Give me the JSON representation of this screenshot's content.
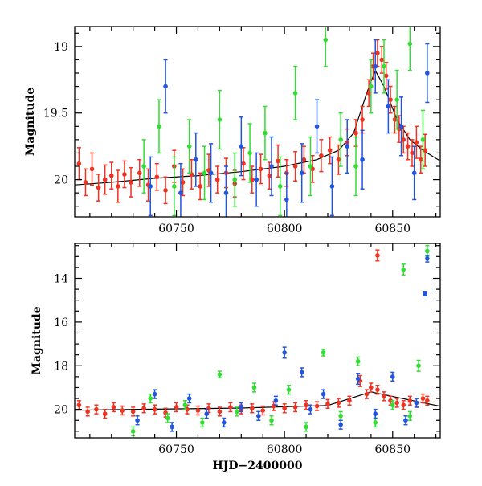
{
  "colors": {
    "red": "#ee3322",
    "green": "#33dd33",
    "blue": "#2255dd",
    "model": "#000000"
  },
  "chart_data": [
    {
      "type": "scatter",
      "panel": "top",
      "xlabel": "",
      "ylabel": "Magnitude",
      "xlim": [
        60703,
        60872
      ],
      "ylim": [
        20.28,
        18.85
      ],
      "y_inverted": true,
      "x_ticks": [
        60750,
        60800,
        60850
      ],
      "x_tick_labels": [
        "60750",
        "60800",
        "60850"
      ],
      "y_ticks": [
        19,
        19.5,
        20
      ],
      "y_tick_labels": [
        "19",
        "19.5",
        "20"
      ],
      "error_bars": true,
      "series": [
        {
          "color": "red",
          "x": [
            60705,
            60708,
            60711,
            60714,
            60717,
            60720,
            60723,
            60726,
            60729,
            60733,
            60737,
            60741,
            60745,
            60749,
            60753,
            60757,
            60761,
            60765,
            60769,
            60773,
            60777,
            60781,
            60785,
            60789,
            60793,
            60797,
            60801,
            60805,
            60809,
            60813,
            60817,
            60821,
            60825,
            60829,
            60833,
            60836,
            60839,
            60841,
            60843,
            60845,
            60847,
            60849,
            60851,
            60853,
            60855,
            60857,
            60859,
            60861,
            60863,
            60865
          ],
          "y": [
            19.88,
            20.02,
            19.92,
            20.06,
            20.0,
            19.97,
            20.05,
            19.96,
            20.02,
            19.95,
            20.04,
            19.98,
            20.08,
            19.9,
            20.02,
            19.96,
            20.05,
            19.93,
            20.0,
            19.95,
            20.03,
            19.88,
            20.0,
            19.92,
            19.97,
            19.86,
            19.95,
            19.9,
            19.85,
            19.92,
            19.82,
            19.78,
            19.85,
            19.72,
            19.65,
            19.55,
            19.35,
            19.15,
            19.05,
            19.1,
            19.22,
            19.4,
            19.55,
            19.62,
            19.7,
            19.75,
            19.8,
            19.72,
            19.85,
            19.78
          ],
          "err": [
            0.12,
            0.1,
            0.12,
            0.1,
            0.11,
            0.1,
            0.12,
            0.1,
            0.11,
            0.1,
            0.12,
            0.1,
            0.1,
            0.12,
            0.1,
            0.11,
            0.1,
            0.12,
            0.1,
            0.11,
            0.1,
            0.12,
            0.1,
            0.11,
            0.1,
            0.12,
            0.1,
            0.11,
            0.1,
            0.1,
            0.12,
            0.1,
            0.11,
            0.1,
            0.1,
            0.1,
            0.1,
            0.1,
            0.1,
            0.1,
            0.1,
            0.1,
            0.1,
            0.1,
            0.1,
            0.1,
            0.1,
            0.12,
            0.1,
            0.12
          ]
        },
        {
          "color": "green",
          "x": [
            60735,
            60742,
            60749,
            60756,
            60763,
            60770,
            60777,
            60784,
            60791,
            60798,
            60805,
            60812,
            60819,
            60826,
            60833,
            60840,
            60846,
            60852,
            60858,
            60864
          ],
          "y": [
            19.9,
            19.6,
            20.05,
            19.75,
            19.95,
            19.55,
            20.0,
            19.8,
            19.65,
            20.05,
            19.35,
            19.9,
            18.95,
            19.7,
            19.9,
            19.3,
            19.15,
            19.4,
            18.98,
            19.7
          ],
          "err": [
            0.2,
            0.2,
            0.22,
            0.2,
            0.2,
            0.22,
            0.2,
            0.22,
            0.2,
            0.22,
            0.2,
            0.22,
            0.2,
            0.2,
            0.22,
            0.2,
            0.2,
            0.22,
            0.2,
            0.22
          ]
        },
        {
          "color": "blue",
          "x": [
            60738,
            60745,
            60752,
            60759,
            60766,
            60773,
            60780,
            60787,
            60794,
            60801,
            60808,
            60815,
            60822,
            60829,
            60836,
            60842,
            60848,
            60854,
            60860,
            60866
          ],
          "y": [
            20.05,
            19.3,
            20.1,
            19.85,
            19.95,
            20.1,
            19.75,
            20.0,
            19.9,
            20.15,
            19.95,
            19.6,
            20.05,
            19.75,
            19.85,
            19.15,
            19.45,
            19.6,
            19.95,
            19.2
          ],
          "err": [
            0.22,
            0.2,
            0.22,
            0.2,
            0.22,
            0.2,
            0.22,
            0.2,
            0.22,
            0.2,
            0.22,
            0.2,
            0.22,
            0.2,
            0.22,
            0.2,
            0.2,
            0.22,
            0.2,
            0.22
          ]
        }
      ],
      "model_curve": {
        "x": [
          60703,
          60720,
          60740,
          60760,
          60780,
          60800,
          60815,
          60825,
          60832,
          60838,
          60842,
          60846,
          60852,
          60858,
          60864,
          60872
        ],
        "y": [
          20.04,
          20.02,
          19.99,
          19.97,
          19.94,
          19.9,
          19.85,
          19.78,
          19.65,
          19.35,
          19.18,
          19.3,
          19.55,
          19.7,
          19.78,
          19.86
        ]
      }
    },
    {
      "type": "scatter",
      "panel": "bottom",
      "xlabel": "HJD−2400000",
      "ylabel": "Magnitude",
      "xlim": [
        60703,
        60872
      ],
      "ylim": [
        21.3,
        12.4
      ],
      "y_inverted": true,
      "x_ticks": [
        60750,
        60800,
        60850
      ],
      "x_tick_labels": [
        "60750",
        "60800",
        "60850"
      ],
      "y_ticks": [
        14,
        16,
        18,
        20
      ],
      "y_tick_labels": [
        "14",
        "16",
        "18",
        "20"
      ],
      "error_bars": true,
      "series": [
        {
          "color": "red",
          "x": [
            60705,
            60709,
            60713,
            60717,
            60721,
            60725,
            60730,
            60735,
            60740,
            60745,
            60750,
            60755,
            60760,
            60765,
            60770,
            60775,
            60780,
            60785,
            60790,
            60795,
            60800,
            60805,
            60810,
            60815,
            60820,
            60825,
            60830,
            60835,
            60838,
            60840,
            60843,
            60846,
            60849,
            60852,
            60855,
            60858,
            60861,
            60864,
            60866
          ],
          "y": [
            19.8,
            20.1,
            20.0,
            20.2,
            19.9,
            20.05,
            20.1,
            19.95,
            20.0,
            20.15,
            19.9,
            20.0,
            20.05,
            19.95,
            20.1,
            19.9,
            20.0,
            19.95,
            20.05,
            19.85,
            19.95,
            19.9,
            19.8,
            19.85,
            19.75,
            19.7,
            19.6,
            18.7,
            19.3,
            19.0,
            19.1,
            19.4,
            19.6,
            19.7,
            19.8,
            19.6,
            19.7,
            19.5,
            19.6
          ],
          "err": [
            0.2,
            0.2,
            0.2,
            0.2,
            0.2,
            0.2,
            0.2,
            0.2,
            0.2,
            0.2,
            0.2,
            0.2,
            0.2,
            0.2,
            0.2,
            0.2,
            0.2,
            0.2,
            0.2,
            0.2,
            0.2,
            0.2,
            0.2,
            0.2,
            0.2,
            0.2,
            0.2,
            0.25,
            0.2,
            0.2,
            0.2,
            0.2,
            0.2,
            0.2,
            0.2,
            0.2,
            0.2,
            0.2,
            0.2
          ]
        },
        {
          "color": "red",
          "x": [
            60843
          ],
          "y": [
            12.95
          ],
          "err": [
            0.25
          ]
        },
        {
          "color": "green",
          "x": [
            60730,
            60738,
            60746,
            60754,
            60762,
            60770,
            60778,
            60786,
            60794,
            60802,
            60810,
            60818,
            60826,
            60834,
            60842,
            60850,
            60855,
            60858,
            60862,
            60866
          ],
          "y": [
            21.0,
            19.5,
            20.4,
            19.8,
            20.6,
            18.4,
            20.1,
            19.0,
            20.5,
            19.1,
            20.8,
            17.4,
            20.3,
            17.8,
            20.6,
            19.8,
            13.6,
            20.3,
            18.0,
            12.75
          ],
          "err": [
            0.2,
            0.2,
            0.2,
            0.2,
            0.2,
            0.15,
            0.2,
            0.2,
            0.2,
            0.2,
            0.2,
            0.15,
            0.2,
            0.2,
            0.2,
            0.2,
            0.25,
            0.2,
            0.25,
            0.25
          ]
        },
        {
          "color": "blue",
          "x": [
            60732,
            60740,
            60748,
            60756,
            60764,
            60772,
            60780,
            60788,
            60796,
            60800,
            60808,
            60812,
            60818,
            60826,
            60834,
            60842,
            60850,
            60856,
            60861,
            60865,
            60866
          ],
          "y": [
            20.5,
            19.3,
            20.8,
            19.5,
            20.2,
            20.6,
            19.9,
            20.3,
            19.6,
            17.4,
            18.3,
            20.0,
            19.3,
            20.7,
            18.6,
            20.2,
            18.5,
            20.5,
            19.7,
            14.7,
            13.1
          ],
          "err": [
            0.2,
            0.2,
            0.2,
            0.2,
            0.2,
            0.2,
            0.2,
            0.2,
            0.2,
            0.25,
            0.2,
            0.2,
            0.2,
            0.2,
            0.25,
            0.2,
            0.2,
            0.2,
            0.2,
            0.1,
            0.15
          ]
        }
      ],
      "model_curve": {
        "x": [
          60703,
          60740,
          60780,
          60820,
          60840,
          60872
        ],
        "y": [
          20.04,
          19.99,
          19.94,
          19.82,
          19.2,
          19.86
        ]
      }
    }
  ]
}
